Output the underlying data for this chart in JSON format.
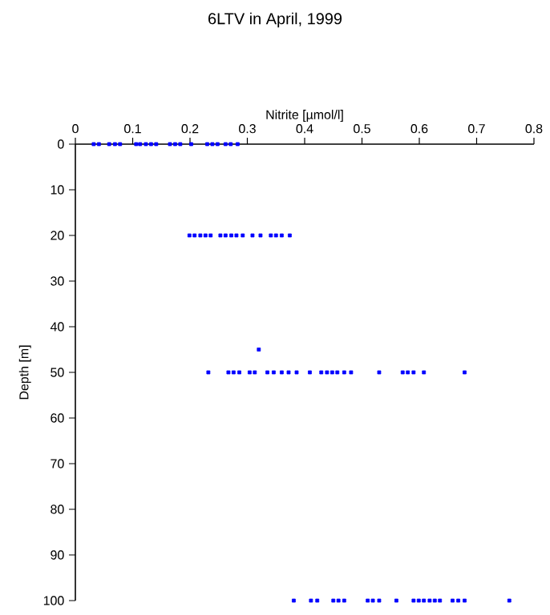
{
  "chart_data": {
    "type": "scatter",
    "title": "6LTV in April, 1999",
    "xlabel": "Nitrite [µmol/l]",
    "ylabel": "Depth [m]",
    "x": [
      0.032,
      0.041,
      0.059,
      0.069,
      0.078,
      0.106,
      0.113,
      0.123,
      0.132,
      0.141,
      0.165,
      0.174,
      0.183,
      0.202,
      0.23,
      0.239,
      0.248,
      0.262,
      0.271,
      0.283,
      0.199,
      0.208,
      0.218,
      0.227,
      0.236,
      0.253,
      0.262,
      0.272,
      0.281,
      0.292,
      0.309,
      0.323,
      0.341,
      0.35,
      0.36,
      0.374,
      0.32,
      0.232,
      0.267,
      0.276,
      0.286,
      0.304,
      0.313,
      0.335,
      0.346,
      0.36,
      0.372,
      0.386,
      0.409,
      0.429,
      0.439,
      0.448,
      0.457,
      0.469,
      0.481,
      0.53,
      0.571,
      0.58,
      0.59,
      0.608,
      0.679,
      0.381,
      0.411,
      0.422,
      0.45,
      0.459,
      0.469,
      0.51,
      0.519,
      0.53,
      0.56,
      0.59,
      0.599,
      0.608,
      0.618,
      0.627,
      0.636,
      0.658,
      0.668,
      0.679,
      0.757
    ],
    "values": [
      0,
      0,
      0,
      0,
      0,
      0,
      0,
      0,
      0,
      0,
      0,
      0,
      0,
      0,
      0,
      0,
      0,
      0,
      0,
      0,
      20,
      20,
      20,
      20,
      20,
      20,
      20,
      20,
      20,
      20,
      20,
      20,
      20,
      20,
      20,
      20,
      45,
      50,
      50,
      50,
      50,
      50,
      50,
      50,
      50,
      50,
      50,
      50,
      50,
      50,
      50,
      50,
      50,
      50,
      50,
      50,
      50,
      50,
      50,
      50,
      50,
      100,
      100,
      100,
      100,
      100,
      100,
      100,
      100,
      100,
      100,
      100,
      100,
      100,
      100,
      100,
      100,
      100,
      100,
      100,
      100
    ],
    "color": "#0000ff",
    "marker": "square",
    "xlim": [
      0,
      0.8
    ],
    "xticks": [
      0,
      0.1,
      0.2,
      0.3,
      0.4,
      0.5,
      0.6,
      0.7,
      0.8
    ],
    "ylim": [
      100,
      0
    ],
    "yticks": [
      0,
      10,
      20,
      30,
      40,
      50,
      60,
      70,
      80,
      90,
      100
    ]
  }
}
